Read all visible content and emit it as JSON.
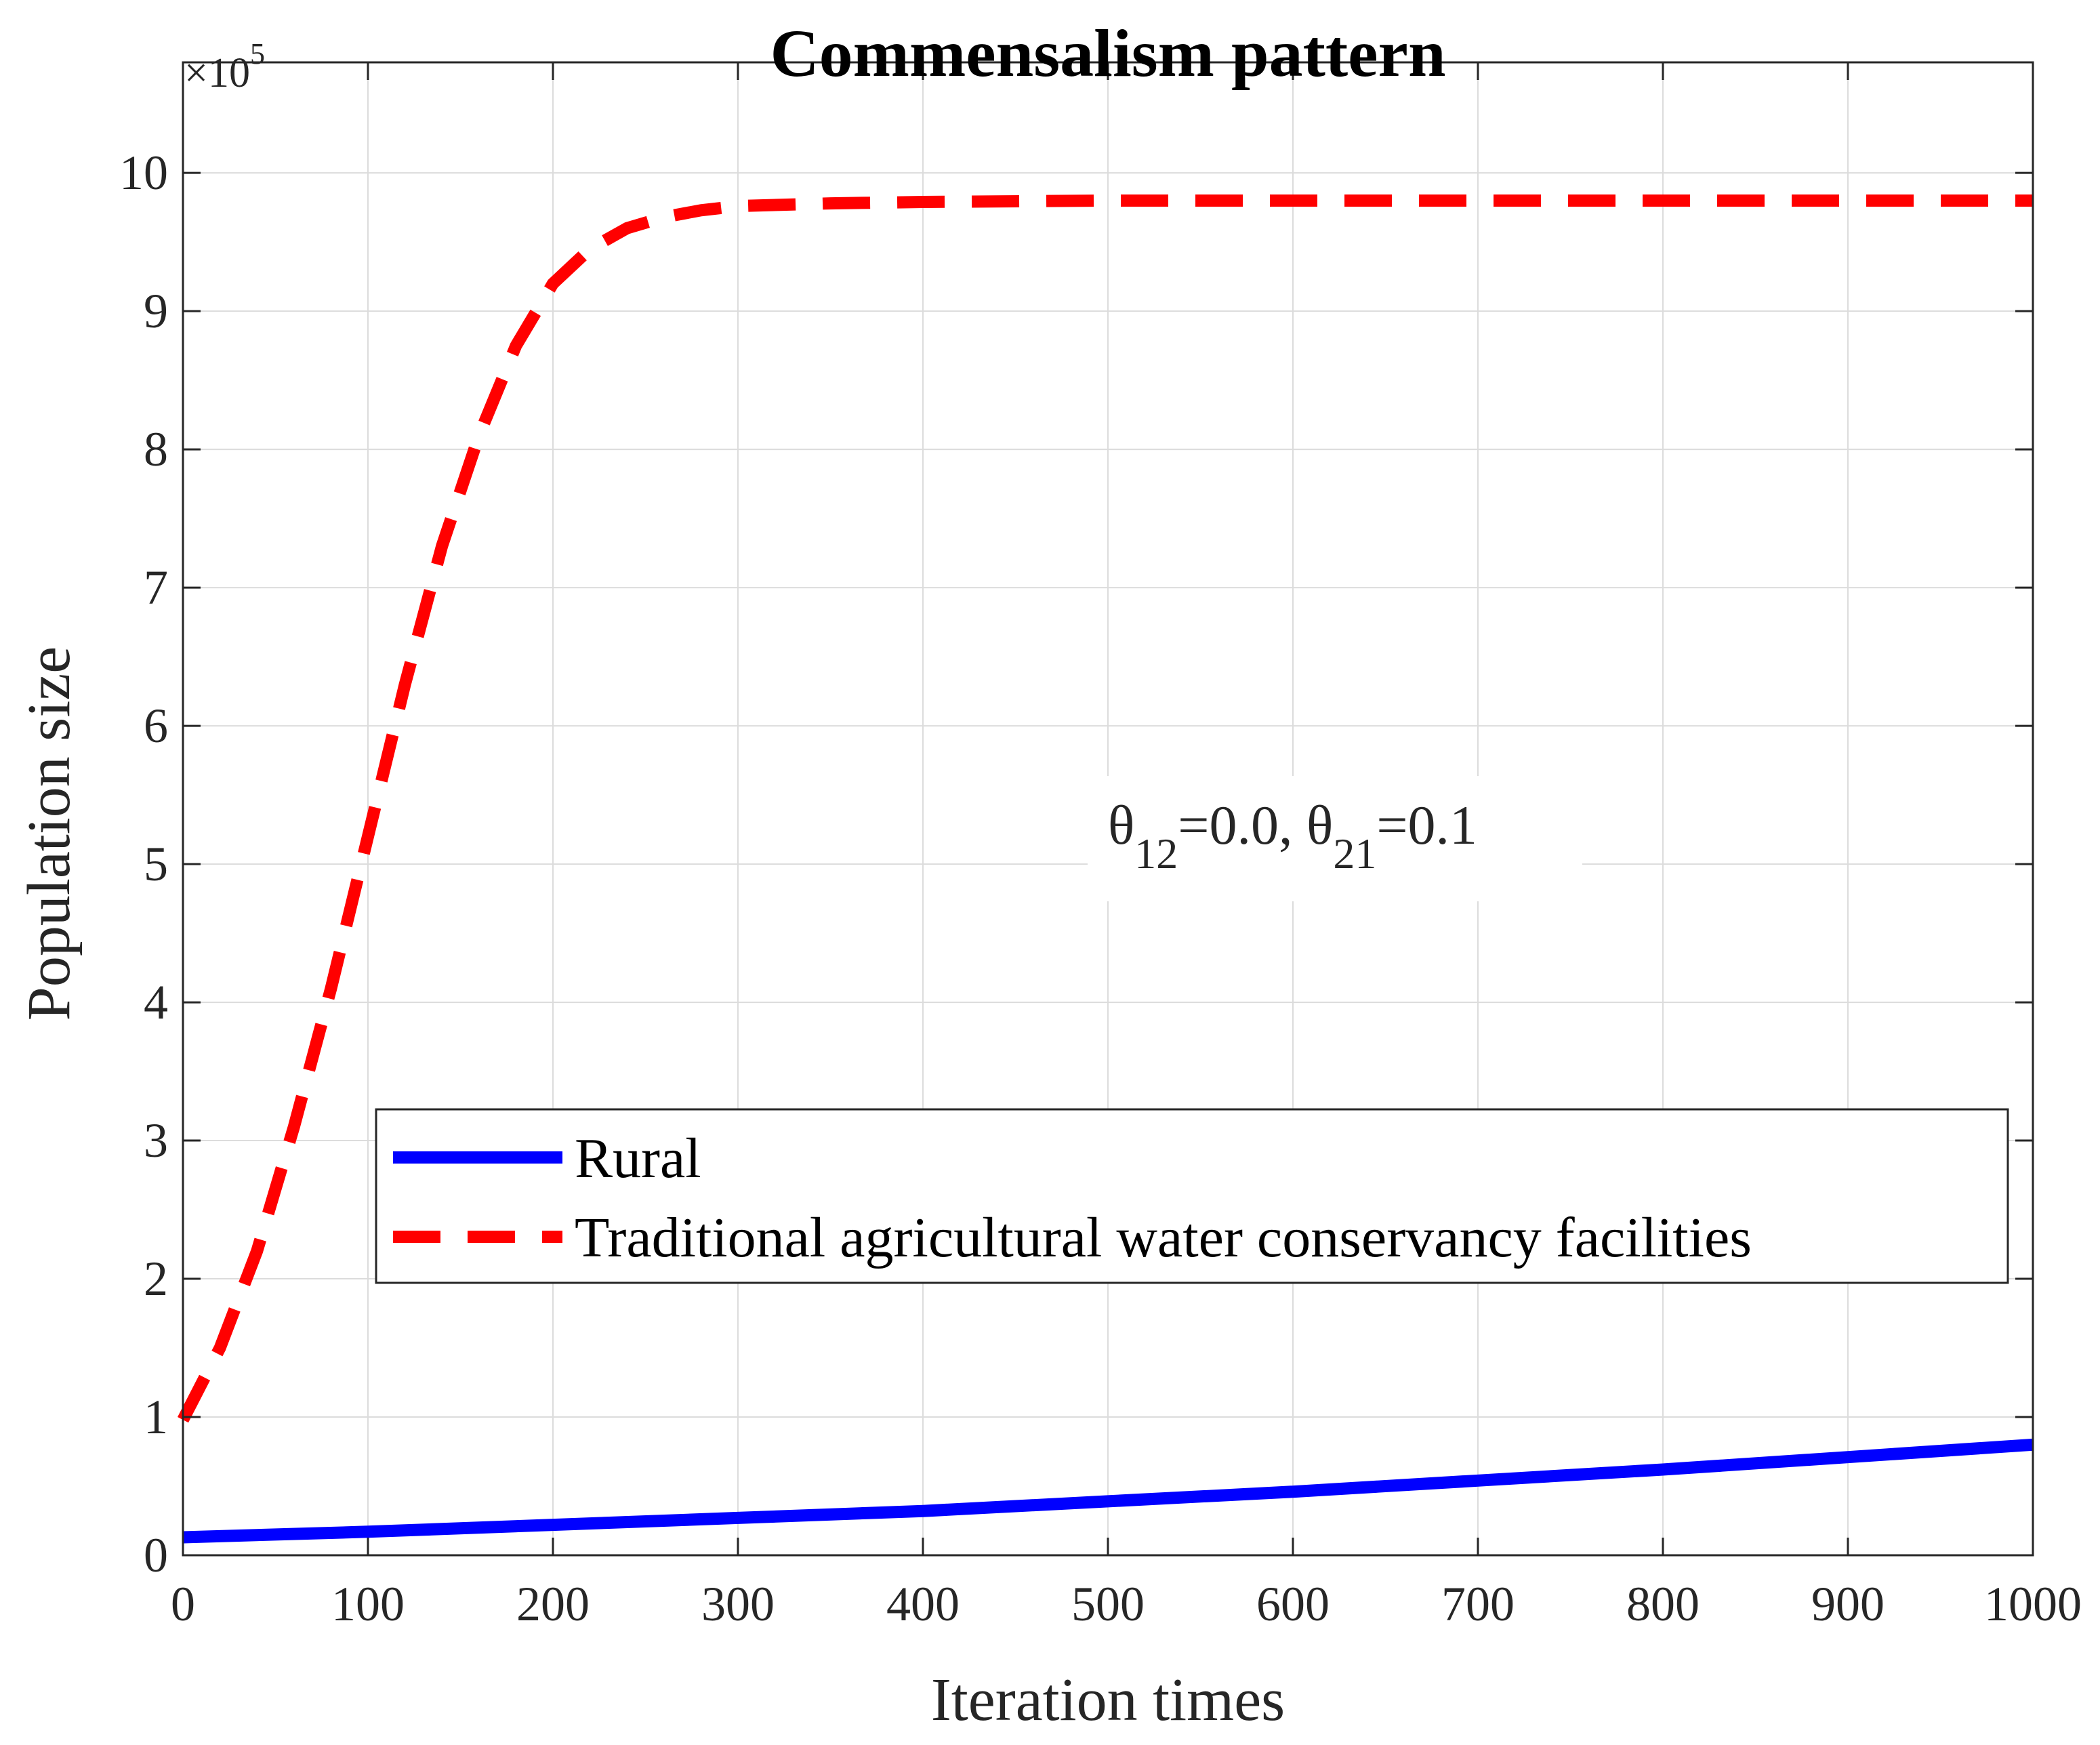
{
  "chart_data": {
    "type": "line",
    "title": "Commensalism  pattern",
    "xlabel": "Iteration times",
    "ylabel": "Population size",
    "y_exponent_base": "×10",
    "y_exponent_power": "5",
    "xlim": [
      0,
      1000
    ],
    "ylim": [
      0,
      10.8
    ],
    "grid": true,
    "legend_position": "center-bottom",
    "x_ticks": [
      0,
      100,
      200,
      300,
      400,
      500,
      600,
      700,
      800,
      900,
      1000
    ],
    "x_tick_labels": [
      "0",
      "100",
      "200",
      "300",
      "400",
      "500",
      "600",
      "700",
      "800",
      "900",
      "1000"
    ],
    "y_ticks": [
      0,
      1,
      2,
      3,
      4,
      5,
      6,
      7,
      8,
      9,
      10
    ],
    "y_tick_labels": [
      "0",
      "1",
      "2",
      "3",
      "4",
      "5",
      "6",
      "7",
      "8",
      "9",
      "10"
    ],
    "annotation": {
      "theta": "θ",
      "sub1": "12",
      "mid": "=0.0, ",
      "sub2": "21",
      "end": "=0.1"
    },
    "series": [
      {
        "name": "Rural",
        "color": "#0000ff",
        "style": "solid",
        "x": [
          0,
          100,
          200,
          300,
          400,
          500,
          600,
          700,
          800,
          900,
          1000
        ],
        "y": [
          0.13,
          0.17,
          0.22,
          0.27,
          0.32,
          0.39,
          0.46,
          0.54,
          0.62,
          0.71,
          0.8
        ]
      },
      {
        "name": "Traditional agricultural water conservancy facilities",
        "color": "#ff0000",
        "style": "dashed",
        "x": [
          0,
          20,
          40,
          60,
          80,
          100,
          120,
          140,
          160,
          180,
          200,
          220,
          240,
          260,
          280,
          300,
          350,
          400,
          500,
          600,
          700,
          800,
          900,
          1000
        ],
        "y": [
          0.98,
          1.5,
          2.2,
          3.1,
          4.1,
          5.2,
          6.3,
          7.3,
          8.1,
          8.75,
          9.2,
          9.45,
          9.6,
          9.68,
          9.73,
          9.76,
          9.78,
          9.79,
          9.8,
          9.8,
          9.8,
          9.8,
          9.8,
          9.8
        ]
      }
    ]
  }
}
